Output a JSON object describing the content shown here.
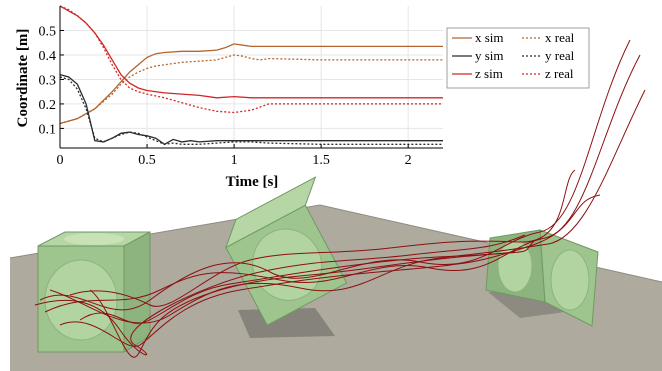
{
  "chart_data": {
    "type": "line",
    "xlabel": "Time [s]",
    "ylabel": "Coordinate [m]",
    "xlim": [
      0,
      2.2
    ],
    "ylim": [
      0.02,
      0.6
    ],
    "xticks": [
      0,
      0.5,
      1,
      1.5,
      2
    ],
    "xtick_labels": [
      "0",
      "0.5",
      "1",
      "1.5",
      "2"
    ],
    "yticks": [
      0.1,
      0.2,
      0.3,
      0.4,
      0.5
    ],
    "ytick_labels": [
      "0.1",
      "0.2",
      "0.3",
      "0.4",
      "0.5"
    ],
    "grid": true,
    "legend_position": "top-right",
    "series": [
      {
        "name": "x sim",
        "color": "#b5652e",
        "dash": "solid",
        "x": [
          0,
          0.1,
          0.2,
          0.3,
          0.35,
          0.4,
          0.45,
          0.5,
          0.55,
          0.6,
          0.7,
          0.8,
          0.9,
          0.95,
          1.0,
          1.05,
          1.1,
          1.2,
          1.5,
          1.8,
          2.2
        ],
        "y": [
          0.12,
          0.14,
          0.18,
          0.25,
          0.29,
          0.33,
          0.36,
          0.39,
          0.405,
          0.41,
          0.415,
          0.415,
          0.42,
          0.43,
          0.445,
          0.44,
          0.435,
          0.435,
          0.435,
          0.435,
          0.435
        ]
      },
      {
        "name": "x real",
        "color": "#b5652e",
        "dash": "dotted",
        "x": [
          0,
          0.1,
          0.2,
          0.3,
          0.35,
          0.4,
          0.45,
          0.5,
          0.55,
          0.6,
          0.7,
          0.8,
          0.9,
          0.95,
          1.0,
          1.05,
          1.1,
          1.15,
          1.2,
          1.5,
          1.8,
          2.2
        ],
        "y": [
          0.12,
          0.14,
          0.18,
          0.24,
          0.28,
          0.31,
          0.33,
          0.345,
          0.355,
          0.36,
          0.37,
          0.375,
          0.38,
          0.39,
          0.4,
          0.395,
          0.385,
          0.38,
          0.385,
          0.38,
          0.38,
          0.38
        ]
      },
      {
        "name": "y sim",
        "color": "#2b2b2b",
        "dash": "solid",
        "x": [
          0,
          0.05,
          0.1,
          0.15,
          0.2,
          0.25,
          0.3,
          0.35,
          0.4,
          0.45,
          0.5,
          0.55,
          0.6,
          0.65,
          0.7,
          0.75,
          0.8,
          0.9,
          1.0,
          1.2,
          1.5,
          2.2
        ],
        "y": [
          0.32,
          0.31,
          0.28,
          0.2,
          0.05,
          0.045,
          0.06,
          0.08,
          0.085,
          0.075,
          0.07,
          0.06,
          0.035,
          0.055,
          0.045,
          0.05,
          0.045,
          0.05,
          0.05,
          0.05,
          0.05,
          0.05
        ]
      },
      {
        "name": "y real",
        "color": "#2b2b2b",
        "dash": "dotted",
        "x": [
          0,
          0.05,
          0.1,
          0.15,
          0.2,
          0.25,
          0.3,
          0.35,
          0.4,
          0.45,
          0.5,
          0.55,
          0.6,
          0.65,
          0.7,
          0.8,
          0.9,
          1.0,
          1.1,
          1.2,
          1.5,
          2.2
        ],
        "y": [
          0.31,
          0.3,
          0.26,
          0.18,
          0.06,
          0.045,
          0.06,
          0.075,
          0.085,
          0.08,
          0.065,
          0.05,
          0.035,
          0.04,
          0.035,
          0.035,
          0.04,
          0.045,
          0.045,
          0.04,
          0.035,
          0.035
        ]
      },
      {
        "name": "z sim",
        "color": "#d02828",
        "dash": "solid",
        "x": [
          0,
          0.05,
          0.1,
          0.15,
          0.2,
          0.25,
          0.3,
          0.35,
          0.4,
          0.45,
          0.5,
          0.6,
          0.7,
          0.8,
          0.9,
          1.0,
          1.1,
          1.2,
          1.5,
          2.2
        ],
        "y": [
          0.6,
          0.58,
          0.56,
          0.53,
          0.49,
          0.44,
          0.38,
          0.32,
          0.285,
          0.265,
          0.255,
          0.245,
          0.24,
          0.235,
          0.225,
          0.23,
          0.225,
          0.225,
          0.225,
          0.225
        ]
      },
      {
        "name": "z real",
        "color": "#d02828",
        "dash": "dotted",
        "x": [
          0,
          0.05,
          0.1,
          0.15,
          0.2,
          0.25,
          0.3,
          0.35,
          0.4,
          0.45,
          0.5,
          0.6,
          0.7,
          0.8,
          0.9,
          1.0,
          1.1,
          1.2,
          1.3,
          1.5,
          2.2
        ],
        "y": [
          0.6,
          0.585,
          0.56,
          0.53,
          0.49,
          0.43,
          0.36,
          0.3,
          0.265,
          0.25,
          0.24,
          0.225,
          0.205,
          0.185,
          0.17,
          0.165,
          0.175,
          0.2,
          0.2,
          0.2,
          0.2
        ]
      }
    ]
  },
  "colors": {
    "floor": "#aeaa9e",
    "floor_edge": "#8f8b80",
    "cube_face": "#9fc58f",
    "cube_edge": "#6f9a62",
    "cube_hole": "#c8e2b8",
    "trajectory": "#8c1010",
    "shadow": "#6f6d66"
  }
}
